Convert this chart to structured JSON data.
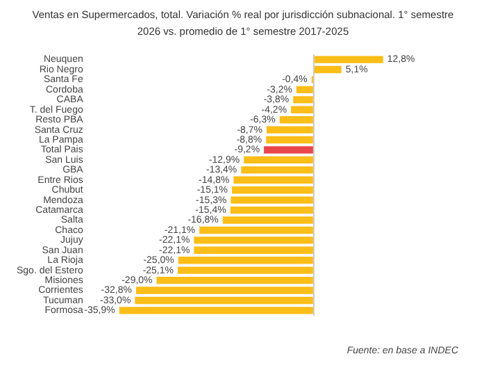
{
  "chart_data": {
    "type": "bar",
    "orientation": "horizontal",
    "title": "Ventas en Supermercados, total. Variación % real por jurisdicción subnacional. 1° semestre 2026 vs. promedio de 1° semestre 2017-2025",
    "categories": [
      "Neuquen",
      "Rio Negro",
      "Santa Fe",
      "Cordoba",
      "CABA",
      "T. del Fuego",
      "Resto PBA",
      "Santa Cruz",
      "La Pampa",
      "Total Pais",
      "San Luis",
      "GBA",
      "Entre Rios",
      "Chubut",
      "Mendoza",
      "Catamarca",
      "Salta",
      "Chaco",
      "Jujuy",
      "San Juan",
      "La Rioja",
      "Sgo. del Estero",
      "Misiones",
      "Corrientes",
      "Tucuman",
      "Formosa"
    ],
    "values": [
      12.8,
      5.1,
      -0.4,
      -3.2,
      -3.8,
      -4.2,
      -6.3,
      -8.7,
      -8.8,
      -9.2,
      -12.9,
      -13.4,
      -14.8,
      -15.1,
      -15.3,
      -15.4,
      -16.8,
      -21.1,
      -22.1,
      -22.1,
      -25.0,
      -25.1,
      -29.0,
      -32.8,
      -33.0,
      -35.9
    ],
    "value_labels": [
      "12,8%",
      "5,1%",
      "-0,4%",
      "-3,2%",
      "-3,8%",
      "-4,2%",
      "-6,3%",
      "-8,7%",
      "-8,8%",
      "-9,2%",
      "-12,9%",
      "-13,4%",
      "-14,8%",
      "-15,1%",
      "-15,3%",
      "-15,4%",
      "-16,8%",
      "-21,1%",
      "-22,1%",
      "-22,1%",
      "-25,0%",
      "-25,1%",
      "-29,0%",
      "-32,8%",
      "-33,0%",
      "-35,9%"
    ],
    "colors": [
      "#fbbd17",
      "#fbbd17",
      "#fbbd17",
      "#fbbd17",
      "#fbbd17",
      "#fbbd17",
      "#fbbd17",
      "#fbbd17",
      "#fbbd17",
      "#e8474a",
      "#fbbd17",
      "#fbbd17",
      "#fbbd17",
      "#fbbd17",
      "#fbbd17",
      "#fbbd17",
      "#fbbd17",
      "#fbbd17",
      "#fbbd17",
      "#fbbd17",
      "#fbbd17",
      "#fbbd17",
      "#fbbd17",
      "#fbbd17",
      "#fbbd17",
      "#fbbd17"
    ],
    "annotations": [
      "Fuente: en base a INDEC"
    ],
    "legend": false,
    "grid": false
  }
}
